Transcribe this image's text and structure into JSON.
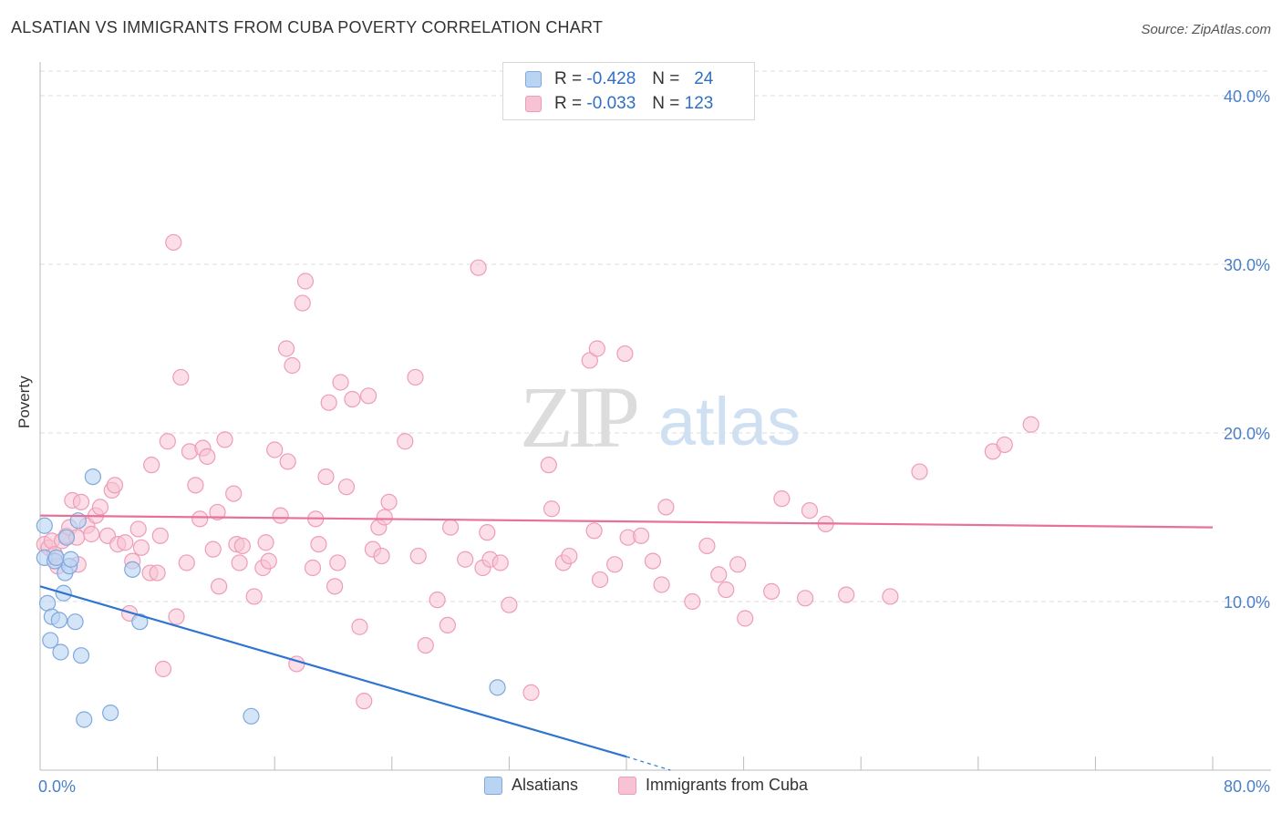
{
  "header": {
    "title": "ALSATIAN VS IMMIGRANTS FROM CUBA POVERTY CORRELATION CHART",
    "source": "Source: ZipAtlas.com"
  },
  "watermark": {
    "zip": "ZIP",
    "atlas": "atlas"
  },
  "legend_top": {
    "rows": [
      {
        "r_label": "R =",
        "r_value": "-0.428",
        "n_label": "N =",
        "n_value": "24"
      },
      {
        "r_label": "R =",
        "r_value": "-0.033",
        "n_label": "N =",
        "n_value": "123"
      }
    ]
  },
  "legend_bottom": {
    "items": [
      {
        "label": "Alsatians"
      },
      {
        "label": "Immigrants from Cuba"
      }
    ]
  },
  "colors": {
    "blue_fill": "#b9d3f3",
    "blue_stroke": "#7fa8dc",
    "blue_line": "#2f74d0",
    "pink_fill": "#f7c3d4",
    "pink_stroke": "#ee9db7",
    "pink_line": "#e87099",
    "tick_text": "#4a7fc9",
    "grid": "#dddddd"
  },
  "chart_data": {
    "type": "scatter",
    "title": "ALSATIAN VS IMMIGRANTS FROM CUBA POVERTY CORRELATION CHART",
    "xlabel": "",
    "ylabel": "Poverty",
    "xlim": [
      0,
      80
    ],
    "ylim": [
      0,
      42
    ],
    "x_tick_labels": [
      {
        "value": 0,
        "label": "0.0%"
      },
      {
        "value": 80,
        "label": "80.0%"
      }
    ],
    "x_minor_ticks": [
      0,
      8,
      16,
      24,
      32,
      40,
      48,
      56,
      64,
      72,
      80
    ],
    "y_ticks": [
      {
        "value": 10,
        "label": "10.0%"
      },
      {
        "value": 20,
        "label": "20.0%"
      },
      {
        "value": 30,
        "label": "30.0%"
      },
      {
        "value": 40,
        "label": "40.0%"
      }
    ],
    "grid": true,
    "series": [
      {
        "name": "Alsatians",
        "color": "#7fa8dc",
        "r": -0.428,
        "n": 24,
        "trend": {
          "x": [
            0,
            40
          ],
          "y": [
            10.9,
            0.8
          ],
          "dashed_to": [
            43,
            0.0
          ]
        },
        "points": [
          [
            0.3,
            14.5
          ],
          [
            0.3,
            12.6
          ],
          [
            0.5,
            9.9
          ],
          [
            0.7,
            7.7
          ],
          [
            0.8,
            9.1
          ],
          [
            1.0,
            12.4
          ],
          [
            1.1,
            12.6
          ],
          [
            1.3,
            8.9
          ],
          [
            1.4,
            7.0
          ],
          [
            1.6,
            10.5
          ],
          [
            1.7,
            11.7
          ],
          [
            1.8,
            13.8
          ],
          [
            2.0,
            12.1
          ],
          [
            2.1,
            12.5
          ],
          [
            2.4,
            8.8
          ],
          [
            2.6,
            14.8
          ],
          [
            2.8,
            6.8
          ],
          [
            3.0,
            3.0
          ],
          [
            3.6,
            17.4
          ],
          [
            4.8,
            3.4
          ],
          [
            6.3,
            11.9
          ],
          [
            6.8,
            8.8
          ],
          [
            14.4,
            3.2
          ],
          [
            31.2,
            4.9
          ]
        ]
      },
      {
        "name": "Immigrants from Cuba",
        "color": "#ee9db7",
        "r": -0.033,
        "n": 123,
        "trend": {
          "x": [
            0,
            80
          ],
          "y": [
            15.1,
            14.4
          ]
        },
        "points": [
          [
            0.3,
            13.4
          ],
          [
            0.6,
            13.2
          ],
          [
            0.8,
            13.6
          ],
          [
            1.0,
            12.8
          ],
          [
            1.2,
            12.1
          ],
          [
            1.5,
            13.6
          ],
          [
            1.8,
            13.9
          ],
          [
            2.0,
            14.4
          ],
          [
            2.2,
            16.0
          ],
          [
            2.5,
            13.8
          ],
          [
            2.6,
            12.2
          ],
          [
            2.8,
            15.9
          ],
          [
            3.2,
            14.5
          ],
          [
            3.5,
            14.0
          ],
          [
            3.8,
            15.1
          ],
          [
            4.1,
            15.6
          ],
          [
            4.6,
            13.9
          ],
          [
            4.9,
            16.6
          ],
          [
            5.1,
            16.9
          ],
          [
            5.3,
            13.4
          ],
          [
            5.8,
            13.5
          ],
          [
            6.1,
            9.3
          ],
          [
            6.3,
            12.4
          ],
          [
            6.7,
            14.3
          ],
          [
            6.9,
            13.2
          ],
          [
            7.5,
            11.7
          ],
          [
            7.6,
            18.1
          ],
          [
            8.0,
            11.7
          ],
          [
            8.2,
            13.9
          ],
          [
            8.4,
            6.0
          ],
          [
            8.7,
            19.5
          ],
          [
            9.1,
            31.3
          ],
          [
            9.3,
            9.1
          ],
          [
            9.6,
            23.3
          ],
          [
            10.0,
            12.3
          ],
          [
            10.2,
            18.9
          ],
          [
            10.6,
            16.9
          ],
          [
            10.9,
            14.9
          ],
          [
            11.1,
            19.1
          ],
          [
            11.4,
            18.6
          ],
          [
            11.8,
            13.1
          ],
          [
            12.1,
            15.3
          ],
          [
            12.2,
            10.9
          ],
          [
            12.6,
            19.6
          ],
          [
            13.2,
            16.4
          ],
          [
            13.4,
            13.4
          ],
          [
            13.6,
            12.3
          ],
          [
            13.8,
            13.3
          ],
          [
            14.6,
            10.3
          ],
          [
            15.2,
            12.0
          ],
          [
            15.4,
            13.5
          ],
          [
            15.6,
            12.4
          ],
          [
            16.0,
            19.0
          ],
          [
            16.4,
            15.1
          ],
          [
            16.8,
            25.0
          ],
          [
            16.9,
            18.3
          ],
          [
            17.2,
            24.0
          ],
          [
            17.5,
            6.3
          ],
          [
            17.9,
            27.7
          ],
          [
            18.1,
            29.0
          ],
          [
            18.6,
            12.0
          ],
          [
            18.8,
            14.9
          ],
          [
            19.0,
            13.4
          ],
          [
            19.5,
            17.4
          ],
          [
            19.7,
            21.8
          ],
          [
            20.1,
            10.9
          ],
          [
            20.3,
            12.3
          ],
          [
            20.5,
            23.0
          ],
          [
            20.9,
            16.8
          ],
          [
            21.3,
            22.0
          ],
          [
            21.8,
            8.5
          ],
          [
            22.1,
            4.1
          ],
          [
            22.4,
            22.2
          ],
          [
            22.7,
            13.1
          ],
          [
            23.1,
            14.4
          ],
          [
            23.3,
            12.7
          ],
          [
            23.5,
            15.0
          ],
          [
            23.8,
            15.9
          ],
          [
            24.9,
            19.5
          ],
          [
            25.6,
            23.3
          ],
          [
            25.8,
            12.7
          ],
          [
            26.3,
            7.4
          ],
          [
            27.1,
            10.1
          ],
          [
            27.8,
            8.6
          ],
          [
            28.0,
            14.4
          ],
          [
            29.0,
            12.5
          ],
          [
            29.9,
            29.8
          ],
          [
            30.2,
            12.0
          ],
          [
            30.5,
            14.1
          ],
          [
            30.7,
            12.5
          ],
          [
            31.4,
            12.3
          ],
          [
            32.0,
            9.8
          ],
          [
            33.5,
            4.6
          ],
          [
            34.7,
            18.1
          ],
          [
            34.9,
            15.5
          ],
          [
            35.7,
            12.3
          ],
          [
            36.1,
            12.7
          ],
          [
            37.5,
            24.3
          ],
          [
            37.8,
            14.2
          ],
          [
            38.0,
            25.0
          ],
          [
            38.2,
            11.3
          ],
          [
            39.2,
            12.2
          ],
          [
            39.9,
            24.7
          ],
          [
            40.1,
            13.8
          ],
          [
            41.0,
            13.9
          ],
          [
            41.8,
            12.4
          ],
          [
            42.4,
            11.0
          ],
          [
            42.7,
            15.6
          ],
          [
            44.5,
            10.0
          ],
          [
            45.5,
            13.3
          ],
          [
            46.3,
            11.6
          ],
          [
            46.8,
            10.7
          ],
          [
            47.6,
            12.2
          ],
          [
            48.1,
            9.0
          ],
          [
            49.9,
            10.6
          ],
          [
            50.6,
            16.1
          ],
          [
            52.2,
            10.2
          ],
          [
            52.5,
            15.4
          ],
          [
            53.6,
            14.6
          ],
          [
            55.0,
            10.4
          ],
          [
            58.0,
            10.3
          ],
          [
            60.0,
            17.7
          ],
          [
            65.0,
            18.9
          ],
          [
            65.8,
            19.3
          ],
          [
            67.6,
            20.5
          ]
        ]
      }
    ]
  }
}
